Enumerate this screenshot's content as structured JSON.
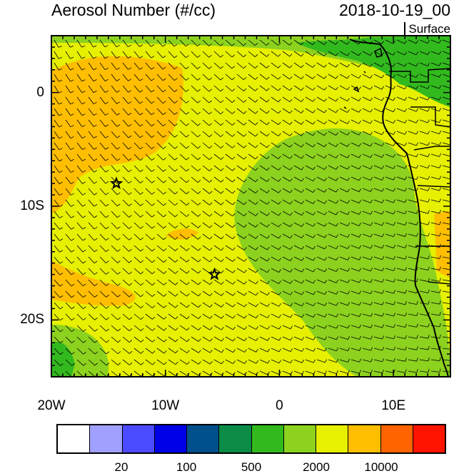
{
  "title": "Aerosol Number (#/cc)",
  "timestamp": "2018-10-19_00",
  "level": "Surface",
  "lat_ticks": [
    {
      "value": 0,
      "label": "0"
    },
    {
      "value": -10,
      "label": "10S"
    },
    {
      "value": -20,
      "label": "20S"
    }
  ],
  "lon_ticks": [
    {
      "value": -20,
      "label": "20W"
    },
    {
      "value": -10,
      "label": "10W"
    },
    {
      "value": 0,
      "label": "0"
    },
    {
      "value": 10,
      "label": "10E"
    }
  ],
  "map_extent": {
    "lon_min": -20,
    "lon_max": 15,
    "lat_min": -25,
    "lat_max": 5
  },
  "colorbar": {
    "colors": [
      "#ffffff",
      "#a0a0ff",
      "#4b4bff",
      "#0000e6",
      "#00508c",
      "#0a8c46",
      "#32b91e",
      "#8cd21e",
      "#e6f000",
      "#ffbe00",
      "#ff6400",
      "#ff1400"
    ],
    "labels": [
      {
        "text": "20",
        "boundary": 2
      },
      {
        "text": "100",
        "boundary": 4
      },
      {
        "text": "500",
        "boundary": 6
      },
      {
        "text": "2000",
        "boundary": 8
      },
      {
        "text": "10000",
        "boundary": 10
      }
    ]
  },
  "markers": [
    {
      "name": "star-marker-1",
      "lon": -14.3,
      "lat": -8.0
    },
    {
      "name": "star-marker-2",
      "lon": -5.7,
      "lat": -16.0
    }
  ],
  "field_colors": {
    "background": "#e6f000",
    "high": "#ffbe00",
    "mid": "#8cd21e",
    "low": "#32b91e"
  }
}
